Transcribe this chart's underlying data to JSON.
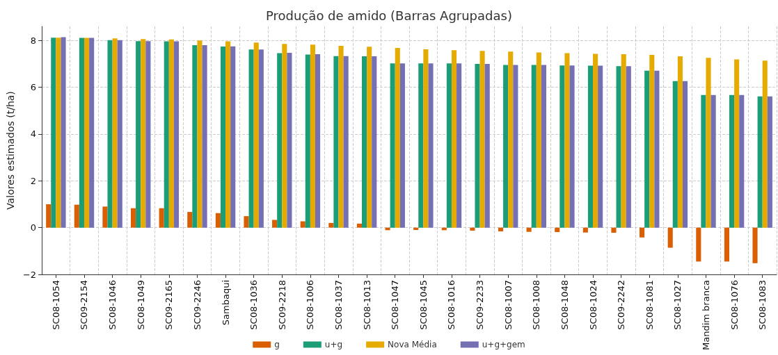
{
  "chart_data": {
    "type": "bar",
    "title": "Produção de amido (Barras Agrupadas)",
    "ylabel": "Valores estimados (t/ha)",
    "categories": [
      "SC08-1054",
      "SC09-2154",
      "SC08-1046",
      "SC08-1049",
      "SC09-2165",
      "SC09-2246",
      "Sambaqui",
      "SC08-1036",
      "SC09-2218",
      "SC08-1006",
      "SC08-1037",
      "SC08-1013",
      "SC08-1047",
      "SC08-1045",
      "SC08-1016",
      "SC09-2233",
      "SC08-1007",
      "SC08-1008",
      "SC08-1048",
      "SC08-1024",
      "SC09-2242",
      "SC08-1081",
      "SC08-1027",
      "Mandim branca",
      "SC08-1076",
      "SC08-1083"
    ],
    "series": [
      {
        "name": "g",
        "color": "#d95f02",
        "values": [
          1.0,
          0.98,
          0.9,
          0.83,
          0.83,
          0.67,
          0.62,
          0.49,
          0.33,
          0.27,
          0.2,
          0.17,
          -0.11,
          -0.1,
          -0.11,
          -0.13,
          -0.16,
          -0.18,
          -0.19,
          -0.21,
          -0.22,
          -0.42,
          -0.86,
          -1.45,
          -1.45,
          -1.52
        ]
      },
      {
        "name": "u+g",
        "color": "#1b9e77",
        "values": [
          8.12,
          8.11,
          8.01,
          7.97,
          7.96,
          7.8,
          7.74,
          7.61,
          7.46,
          7.4,
          7.33,
          7.32,
          7.02,
          7.02,
          7.02,
          7.0,
          6.95,
          6.95,
          6.93,
          6.92,
          6.9,
          6.71,
          6.26,
          5.67,
          5.67,
          5.61
        ]
      },
      {
        "name": "Nova Média",
        "color": "#e6ab02",
        "values": [
          8.12,
          8.11,
          8.09,
          8.06,
          8.04,
          8.0,
          7.96,
          7.91,
          7.85,
          7.82,
          7.77,
          7.73,
          7.68,
          7.62,
          7.58,
          7.55,
          7.52,
          7.49,
          7.46,
          7.43,
          7.41,
          7.38,
          7.32,
          7.26,
          7.19,
          7.14
        ]
      },
      {
        "name": "u+g+gem",
        "color": "#7570b3",
        "values": [
          8.14,
          8.11,
          8.01,
          7.97,
          7.96,
          7.8,
          7.75,
          7.61,
          7.47,
          7.41,
          7.33,
          7.32,
          7.02,
          7.02,
          7.02,
          7.0,
          6.95,
          6.95,
          6.93,
          6.92,
          6.9,
          6.71,
          6.26,
          5.67,
          5.67,
          5.61
        ]
      }
    ],
    "ylim": [
      -2,
      8.6
    ],
    "yticks": [
      {
        "value": -2,
        "label": "−2"
      },
      0,
      2,
      4,
      6,
      8
    ],
    "grid": true,
    "legend": "bottom"
  }
}
